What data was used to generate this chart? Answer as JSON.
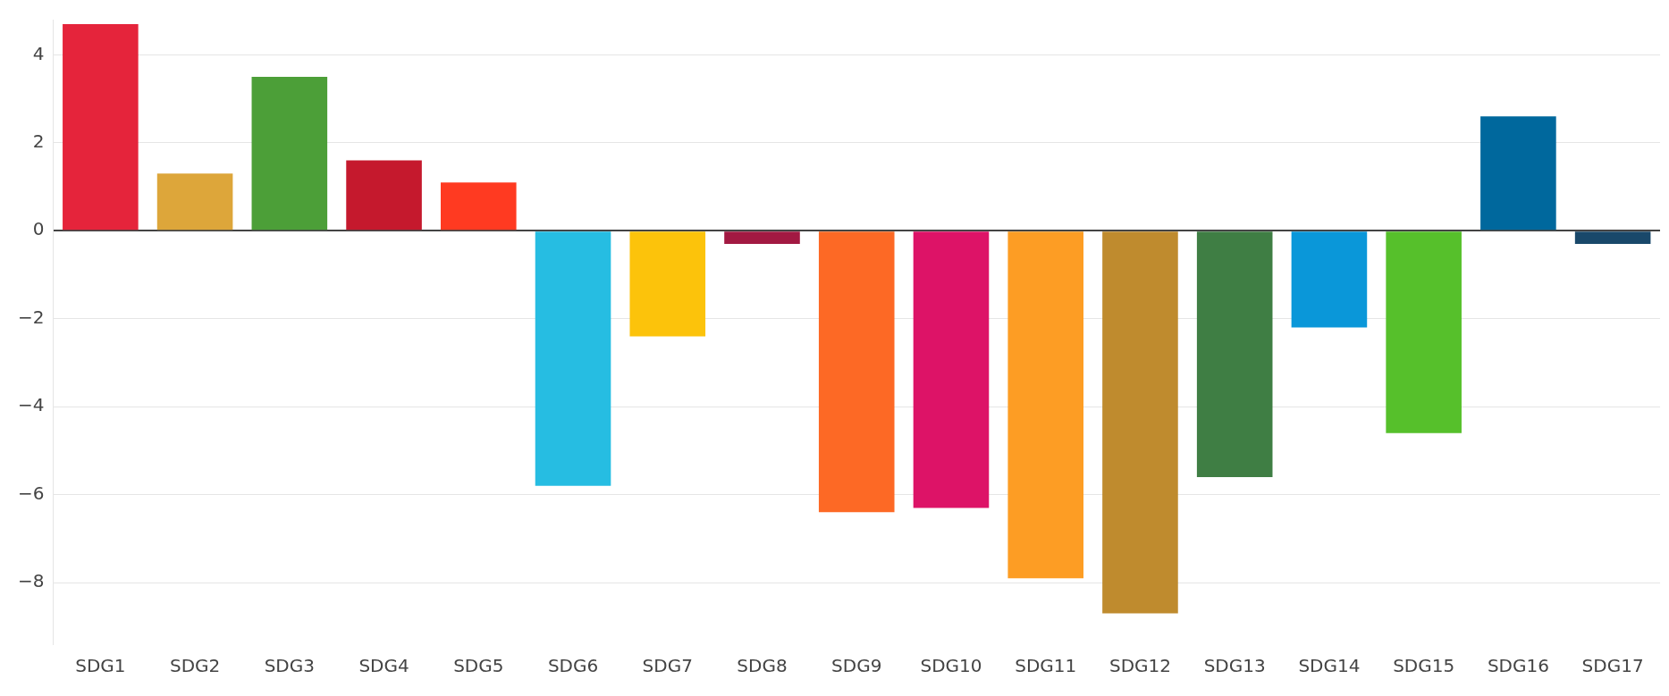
{
  "chart_data": {
    "type": "bar",
    "categories": [
      "SDG1",
      "SDG2",
      "SDG3",
      "SDG4",
      "SDG5",
      "SDG6",
      "SDG7",
      "SDG8",
      "SDG9",
      "SDG10",
      "SDG11",
      "SDG12",
      "SDG13",
      "SDG14",
      "SDG15",
      "SDG16",
      "SDG17"
    ],
    "values": [
      4.7,
      1.3,
      3.5,
      1.6,
      1.1,
      -5.8,
      -2.4,
      -0.3,
      -6.4,
      -6.3,
      -7.9,
      -8.7,
      -5.6,
      -2.2,
      -4.6,
      2.6,
      -0.3
    ],
    "colors": [
      "#e5243b",
      "#dda63a",
      "#4c9f38",
      "#c5192d",
      "#ff3a21",
      "#26bde2",
      "#fcc30b",
      "#a21942",
      "#fd6925",
      "#dd1367",
      "#fd9d24",
      "#bf8b2e",
      "#3f7e44",
      "#0a97d9",
      "#56c02b",
      "#00689d",
      "#19486a"
    ],
    "ylim": [
      -9.4,
      4.8
    ],
    "yticks": [
      {
        "value": -8,
        "label": "−8"
      },
      {
        "value": -6,
        "label": "−6"
      },
      {
        "value": -4,
        "label": "−4"
      },
      {
        "value": -2,
        "label": "−2"
      },
      0,
      2,
      4
    ],
    "grid": "y"
  }
}
